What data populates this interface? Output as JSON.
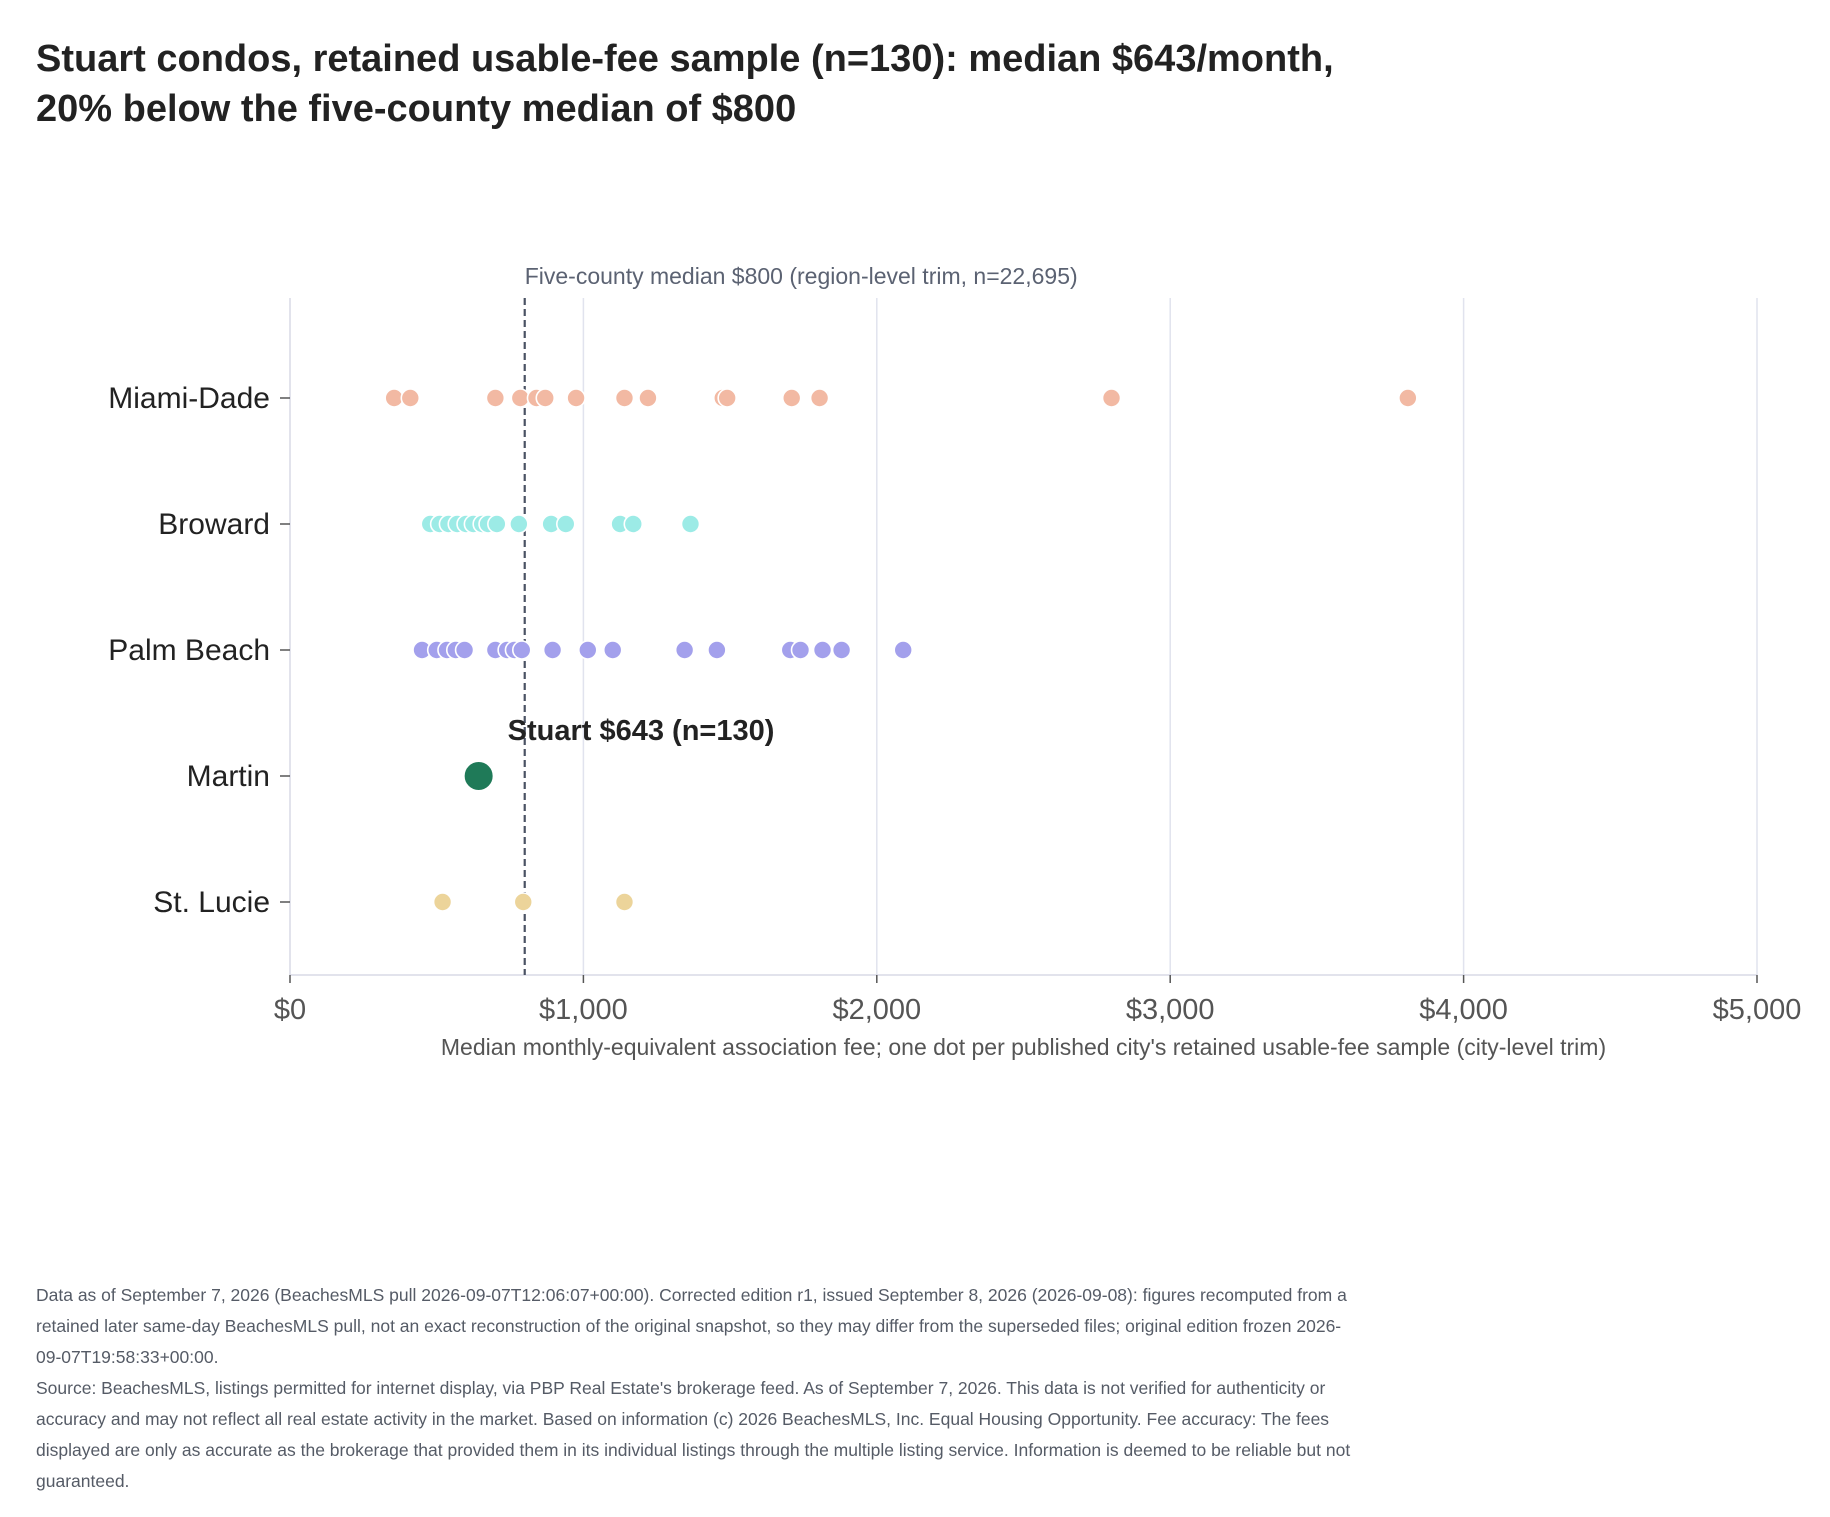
{
  "chart_data": {
    "type": "scatter",
    "title": "Stuart condos, retained usable-fee sample (n=130): median $643/month, 20% below the five-county median of $800",
    "xlabel": "Median monthly-equivalent association fee; one dot per published city's retained usable-fee sample (city-level trim)",
    "ylabel": "",
    "xlim": [
      0,
      5000
    ],
    "x_ticks": [
      0,
      1000,
      2000,
      3000,
      4000,
      5000
    ],
    "x_tick_labels": [
      "$0",
      "$1,000",
      "$2,000",
      "$3,000",
      "$4,000",
      "$5,000"
    ],
    "categories": [
      "Miami-Dade",
      "Broward",
      "Palm Beach",
      "Martin",
      "St. Lucie"
    ],
    "grid": "vertical",
    "series": [
      {
        "name": "Miami-Dade",
        "color": "#f2b9a3",
        "values": [
          355,
          410,
          700,
          785,
          840,
          870,
          975,
          1140,
          1220,
          1475,
          1490,
          1710,
          1805,
          2800,
          3810
        ]
      },
      {
        "name": "Broward",
        "color": "#9cebe6",
        "values": [
          478,
          510,
          540,
          570,
          600,
          625,
          655,
          675,
          705,
          780,
          890,
          940,
          1125,
          1170,
          1365
        ]
      },
      {
        "name": "Palm Beach",
        "color": "#a3a0ec",
        "values": [
          450,
          500,
          535,
          565,
          595,
          700,
          740,
          765,
          790,
          895,
          1015,
          1100,
          1345,
          1455,
          1705,
          1740,
          1815,
          1880,
          2090
        ]
      },
      {
        "name": "Martin",
        "color": "#1f7a58",
        "values": [
          643
        ],
        "highlight": true
      },
      {
        "name": "St. Lucie",
        "color": "#ecd49a",
        "values": [
          520,
          795,
          1140
        ]
      }
    ],
    "reference_line": {
      "value": 800,
      "label": "Five-county median $800 (region-level trim, n=22,695)",
      "color": "#4a5263"
    },
    "annotation": {
      "category": "Martin",
      "value": 643,
      "label": "Stuart $643 (n=130)"
    }
  },
  "footnote": {
    "line1": "Data as of September 7, 2026 (BeachesMLS pull 2026-09-07T12:06:07+00:00). Corrected edition r1, issued September 8, 2026 (2026-09-08): figures recomputed from a retained later same-day BeachesMLS pull, not an exact reconstruction of the original snapshot, so they may differ from the superseded files; original edition frozen 2026-09-07T19:58:33+00:00.",
    "line2": "Source: BeachesMLS, listings permitted for internet display, via PBP Real Estate's brokerage feed. As of September 7, 2026. This data is not verified for authenticity or accuracy and may not reflect all real estate activity in the market. Based on information (c) 2026 BeachesMLS, Inc. Equal Housing Opportunity. Fee accuracy: The fees displayed are only as accurate as the brokerage that provided them in its individual listings through the multiple listing service. Information is deemed to be reliable but not guaranteed."
  }
}
